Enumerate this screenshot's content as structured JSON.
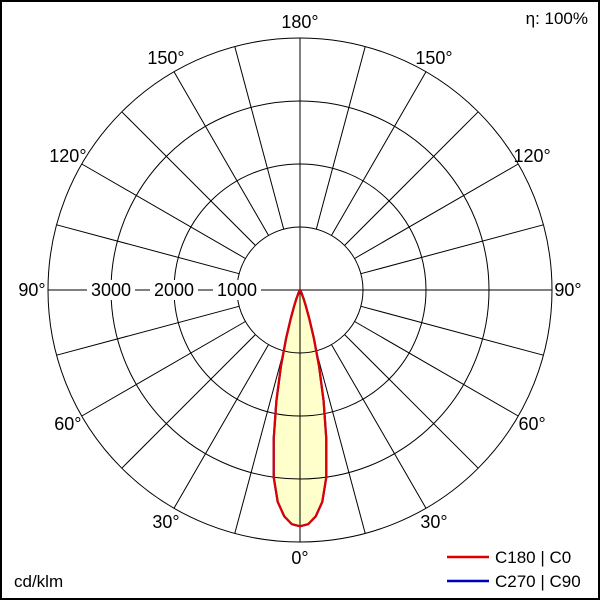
{
  "header": {
    "efficiency_label": "η: 100%"
  },
  "footer": {
    "unit_label": "cd/klm"
  },
  "legend": [
    {
      "label": "C180 | C0",
      "color": "#dd0000"
    },
    {
      "label": "C270 | C90",
      "color": "#0000bb"
    }
  ],
  "chart_data": {
    "type": "polar",
    "subtype": "luminous-intensity-distribution",
    "unit": "cd/klm",
    "efficiency": "η: 100%",
    "angle_step_deg": 15,
    "angle_labels_deg": [
      0,
      30,
      60,
      90,
      120,
      150,
      180
    ],
    "ring_values": [
      1000,
      2000,
      3000,
      4000
    ],
    "ring_labels": [
      3000,
      2000,
      1000
    ],
    "rmax_value": 4000,
    "fill_color": "#ffffcc",
    "grid_color": "#000000",
    "series": [
      {
        "name": "C180 | C0",
        "color": "#dd0000",
        "gamma_deg": [
          0,
          2,
          4,
          6,
          8,
          10,
          12,
          14,
          16,
          18,
          20,
          22,
          25,
          28,
          30,
          35,
          40,
          45,
          50,
          55,
          60,
          70,
          80,
          90,
          105,
          120,
          135,
          150,
          165,
          180
        ],
        "values": [
          3750,
          3720,
          3600,
          3380,
          3000,
          2400,
          1800,
          1250,
          800,
          480,
          280,
          160,
          80,
          40,
          25,
          12,
          8,
          6,
          5,
          4,
          4,
          3,
          2,
          2,
          1,
          1,
          0,
          0,
          0,
          0
        ]
      },
      {
        "name": "C270 | C90",
        "color": "#0000bb",
        "gamma_deg": [
          0,
          2,
          4,
          6,
          8,
          10,
          12,
          14,
          16,
          18,
          20,
          22,
          25,
          28,
          30,
          35,
          40,
          45,
          50,
          55,
          60,
          70,
          80,
          90,
          105,
          120,
          135,
          150,
          165,
          180
        ],
        "values": [
          3750,
          3720,
          3600,
          3380,
          3000,
          2400,
          1800,
          1250,
          800,
          480,
          280,
          160,
          80,
          40,
          25,
          12,
          8,
          6,
          5,
          4,
          4,
          3,
          2,
          2,
          1,
          1,
          0,
          0,
          0,
          0
        ]
      }
    ]
  }
}
